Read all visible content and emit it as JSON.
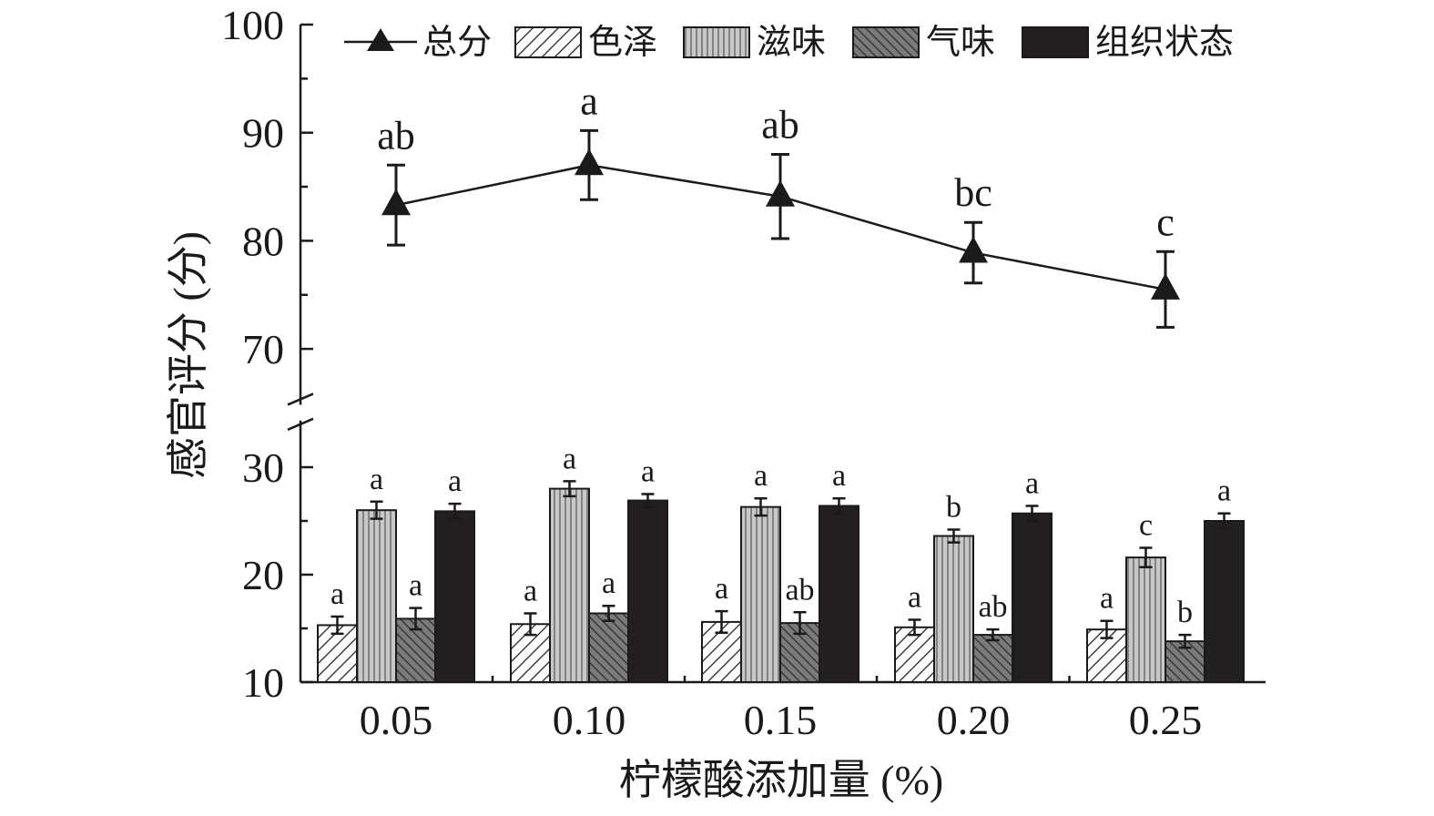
{
  "chart_data": {
    "type": "bar",
    "title": "",
    "xlabel": "柠檬酸添加量 (%)",
    "ylabel": "感官评分 (分)",
    "categories": [
      "0.05",
      "0.10",
      "0.15",
      "0.20",
      "0.25"
    ],
    "ylim_lower": [
      10,
      34
    ],
    "ylim_upper": [
      65,
      100
    ],
    "yticks_lower": [
      "10",
      "20",
      "30"
    ],
    "yticks_upper": [
      "70",
      "80",
      "90",
      "100"
    ],
    "axis_break": true,
    "legend_position": "top",
    "line_series": {
      "name": "总分",
      "values": [
        83.3,
        87.0,
        84.1,
        78.9,
        75.5
      ],
      "errors": [
        3.7,
        3.2,
        3.9,
        2.8,
        3.5
      ],
      "labels": [
        "ab",
        "a",
        "ab",
        "bc",
        "c"
      ]
    },
    "series": [
      {
        "name": "色泽",
        "values": [
          15.3,
          15.4,
          15.6,
          15.1,
          14.9
        ],
        "errors": [
          0.8,
          1.0,
          1.0,
          0.7,
          0.8
        ],
        "labels": [
          "a",
          "a",
          "a",
          "a",
          "a"
        ]
      },
      {
        "name": "滋味",
        "values": [
          26.0,
          28.0,
          26.3,
          23.6,
          21.6
        ],
        "errors": [
          0.8,
          0.7,
          0.8,
          0.6,
          0.9
        ],
        "labels": [
          "a",
          "a",
          "a",
          "b",
          "c"
        ]
      },
      {
        "name": "气味",
        "values": [
          15.9,
          16.4,
          15.5,
          14.4,
          13.8
        ],
        "errors": [
          1.0,
          0.7,
          1.0,
          0.5,
          0.6
        ],
        "labels": [
          "a",
          "a",
          "ab",
          "ab",
          "b"
        ]
      },
      {
        "name": "组织状态",
        "values": [
          25.9,
          26.9,
          26.4,
          25.7,
          25.0
        ],
        "errors": [
          0.7,
          0.6,
          0.7,
          0.7,
          0.7
        ],
        "labels": [
          "a",
          "a",
          "a",
          "a",
          "a"
        ]
      }
    ]
  }
}
